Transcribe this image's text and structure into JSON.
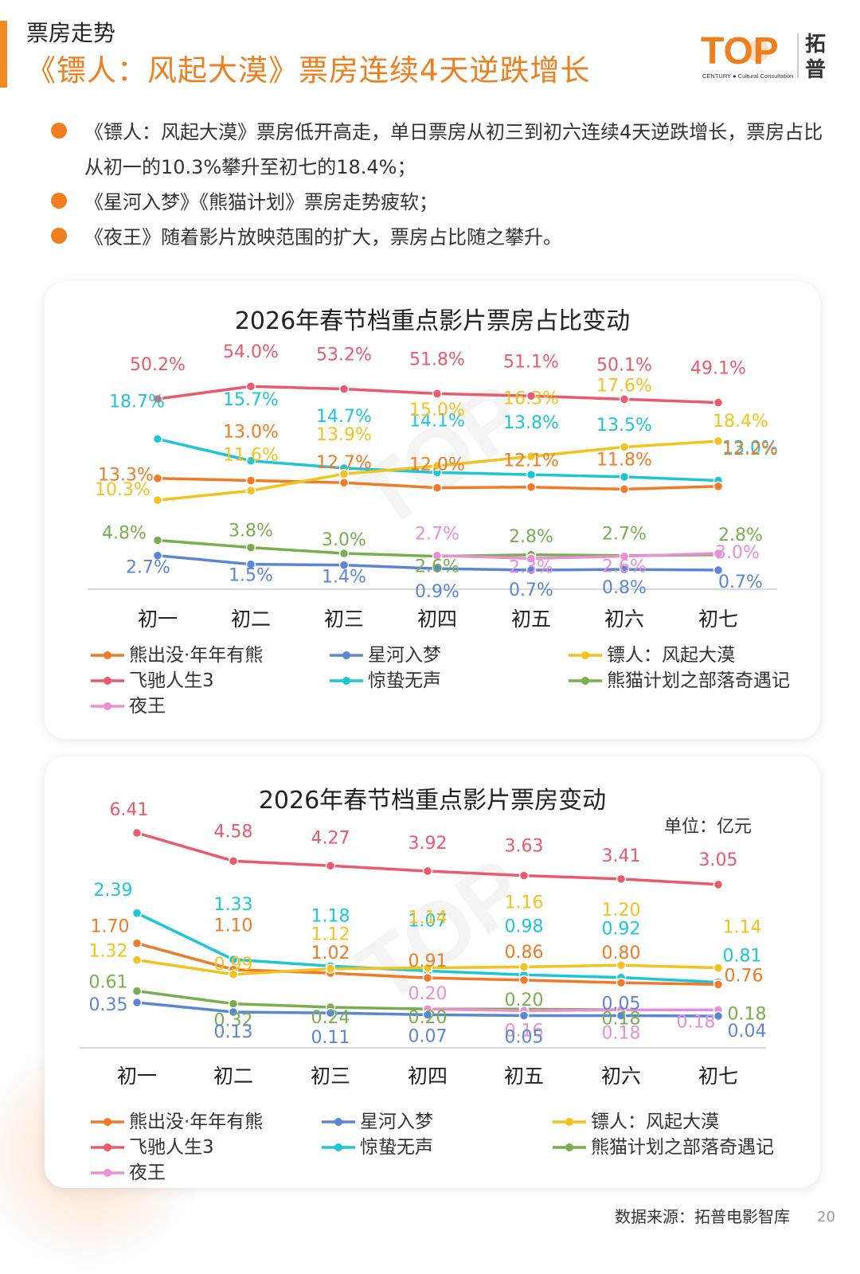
{
  "header": {
    "section": "票房走势",
    "title": "《镖人：风起大漠》票房连续4天逆跌增长",
    "logo_text": "TOP",
    "logo_sub": "CENTURY ● Cultural Consultation",
    "logo_cn": "拓普"
  },
  "bullets": [
    "《镖人：风起大漠》票房低开高走，单日票房从初三到初六连续4天逆跌增长，票房占比从初一的10.3%攀升至初七的18.4%；",
    "《星河入梦》《熊猫计划》票房走势疲软；",
    "《夜王》随着影片放映范围的扩大，票房占比随之攀升。"
  ],
  "colors": {
    "accent": "#f07e1e",
    "熊出没·年年有熊": "#f07a25",
    "星河入梦": "#5b86d6",
    "镖人：风起大漠": "#f3c21c",
    "飞驰人生3": "#ea5a6c",
    "惊蛰无声": "#1cc6d8",
    "熊猫计划之部落奇遇记": "#79ae4f",
    "夜王": "#e88fd6"
  },
  "chart_data": [
    {
      "type": "line",
      "title": "2026年春节档重点影片票房占比变动",
      "categories": [
        "初一",
        "初二",
        "初三",
        "初四",
        "初五",
        "初六",
        "初七"
      ],
      "unit": "%",
      "series": [
        {
          "name": "熊出没·年年有熊",
          "values": [
            13.3,
            13.0,
            12.7,
            12.0,
            12.1,
            11.8,
            12.2
          ],
          "labels": [
            "13.3%",
            "13.0%",
            "12.7%",
            "12.0%",
            "12.1%",
            "11.8%",
            "12.2%"
          ]
        },
        {
          "name": "星河入梦",
          "values": [
            2.7,
            1.5,
            1.4,
            0.9,
            0.7,
            0.8,
            0.7
          ],
          "labels": [
            "2.7%",
            "1.5%",
            "1.4%",
            "0.9%",
            "0.7%",
            "0.8%",
            "0.7%"
          ]
        },
        {
          "name": "镖人：风起大漠",
          "values": [
            10.3,
            11.6,
            13.9,
            15.0,
            16.3,
            17.6,
            18.4
          ],
          "labels": [
            "10.3%",
            "11.6%",
            "13.9%",
            "15.0%",
            "16.3%",
            "17.6%",
            "18.4%"
          ]
        },
        {
          "name": "飞驰人生3",
          "values": [
            50.2,
            54.0,
            53.2,
            51.8,
            51.1,
            50.1,
            49.1
          ],
          "labels": [
            "50.2%",
            "54.0%",
            "53.2%",
            "51.8%",
            "51.1%",
            "50.1%",
            "49.1%"
          ]
        },
        {
          "name": "惊蛰无声",
          "values": [
            18.7,
            15.7,
            14.7,
            14.1,
            13.8,
            13.5,
            13.0
          ],
          "labels": [
            "18.7%",
            "15.7%",
            "14.7%",
            "14.1%",
            "13.8%",
            "13.5%",
            "13.0%"
          ]
        },
        {
          "name": "熊猫计划之部落奇遇记",
          "values": [
            4.8,
            3.8,
            3.0,
            2.6,
            2.8,
            2.7,
            2.8
          ],
          "labels": [
            "4.8%",
            "3.8%",
            "3.0%",
            "2.6%",
            "2.8%",
            "2.7%",
            "2.8%"
          ]
        },
        {
          "name": "夜王",
          "values": [
            null,
            null,
            null,
            2.7,
            2.3,
            2.6,
            3.0
          ],
          "labels": [
            null,
            null,
            null,
            "2.7%",
            "2.3%",
            "2.6%",
            "3.0%"
          ]
        }
      ]
    },
    {
      "type": "line",
      "title": "2026年春节档重点影片票房变动",
      "unit_label": "单位：亿元",
      "categories": [
        "初一",
        "初二",
        "初三",
        "初四",
        "初五",
        "初六",
        "初七"
      ],
      "series": [
        {
          "name": "熊出没·年年有熊",
          "values": [
            1.7,
            1.1,
            1.02,
            0.91,
            0.86,
            0.8,
            0.76
          ],
          "labels": [
            "1.70",
            "1.10",
            "1.02",
            "0.91",
            "0.86",
            "0.80",
            "0.76"
          ]
        },
        {
          "name": "星河入梦",
          "values": [
            0.35,
            0.13,
            0.11,
            0.07,
            0.05,
            0.05,
            0.04
          ],
          "labels": [
            "0.35",
            "0.13",
            "0.11",
            "0.07",
            "0.05",
            "0.05",
            "0.04"
          ]
        },
        {
          "name": "镖人：风起大漠",
          "values": [
            1.32,
            0.99,
            1.12,
            1.14,
            1.16,
            1.2,
            1.14
          ],
          "labels": [
            "1.32",
            "0.99",
            "1.12",
            "1.14",
            "1.16",
            "1.20",
            "1.14"
          ]
        },
        {
          "name": "飞驰人生3",
          "values": [
            6.41,
            4.58,
            4.27,
            3.92,
            3.63,
            3.41,
            3.05
          ],
          "labels": [
            "6.41",
            "4.58",
            "4.27",
            "3.92",
            "3.63",
            "3.41",
            "3.05"
          ]
        },
        {
          "name": "惊蛰无声",
          "values": [
            2.39,
            1.33,
            1.18,
            1.07,
            0.98,
            0.92,
            0.81
          ],
          "labels": [
            "2.39",
            "1.33",
            "1.18",
            "1.07",
            "0.98",
            "0.92",
            "0.81"
          ]
        },
        {
          "name": "熊猫计划之部落奇遇记",
          "values": [
            0.61,
            0.32,
            0.24,
            0.2,
            0.2,
            0.18,
            0.18
          ],
          "labels": [
            "0.61",
            "0.32",
            "0.24",
            "0.20",
            "0.20",
            "0.18",
            "0.18"
          ]
        },
        {
          "name": "夜王",
          "values": [
            null,
            null,
            null,
            0.2,
            0.16,
            0.18,
            0.18
          ],
          "labels": [
            null,
            null,
            null,
            "0.20",
            "0.16",
            "0.18",
            "0.18"
          ]
        }
      ]
    }
  ],
  "legend": [
    "熊出没·年年有熊",
    "星河入梦",
    "镖人：风起大漠",
    "飞驰人生3",
    "惊蛰无声",
    "熊猫计划之部落奇遇记",
    "夜王"
  ],
  "footer": {
    "source": "数据来源：拓普电影智库",
    "page": "20"
  }
}
